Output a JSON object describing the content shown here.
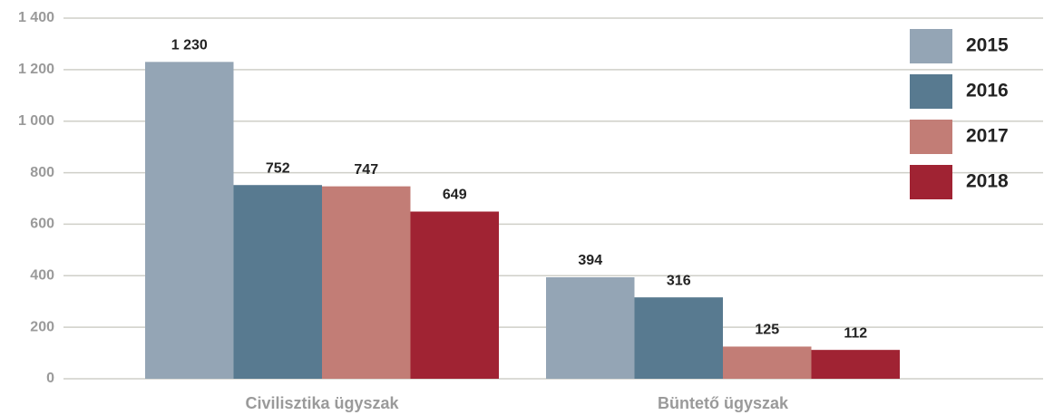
{
  "chart_data": {
    "type": "bar",
    "categories": [
      "Civilisztika ügyszak",
      "Büntető ügyszak"
    ],
    "series": [
      {
        "name": "2015",
        "color": "#94a5b5",
        "values": [
          1230,
          394
        ],
        "value_labels": [
          "1 230",
          "394"
        ]
      },
      {
        "name": "2016",
        "color": "#587a90",
        "values": [
          752,
          316
        ],
        "value_labels": [
          "752",
          "316"
        ]
      },
      {
        "name": "2017",
        "color": "#c27d76",
        "values": [
          747,
          125
        ],
        "value_labels": [
          "747",
          "125"
        ]
      },
      {
        "name": "2018",
        "color": "#a02333",
        "values": [
          649,
          112
        ],
        "value_labels": [
          "649",
          "112"
        ]
      }
    ],
    "ylim": [
      0,
      1400
    ],
    "yticks": [
      0,
      200,
      400,
      600,
      800,
      {
        "value": 1000,
        "label": "1 000"
      },
      {
        "value": 1200,
        "label": "1 200"
      },
      {
        "value": 1400,
        "label": "1 400"
      }
    ],
    "grid": true,
    "legend": "top-right"
  }
}
